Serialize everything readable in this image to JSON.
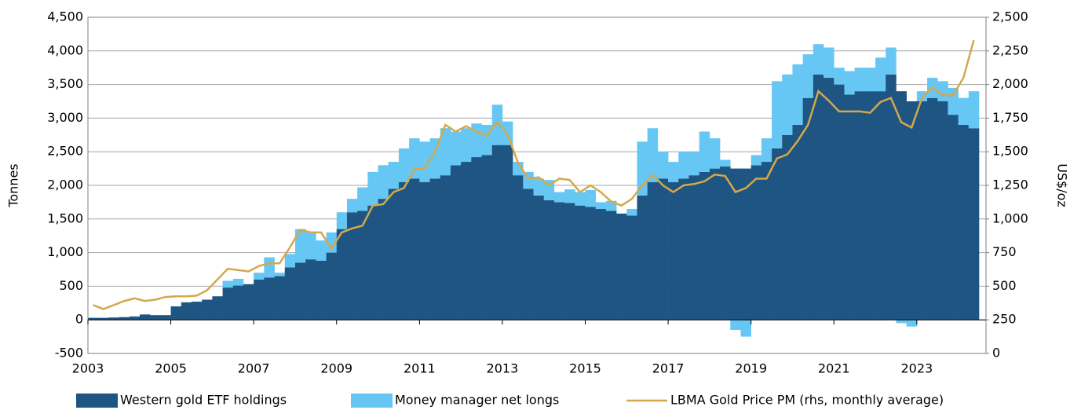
{
  "chart_data": {
    "type": "bar-line",
    "ylabel": "Tonnes",
    "y2label": "US$/oz",
    "x": [
      2003,
      2003.25,
      2003.5,
      2003.75,
      2004,
      2004.25,
      2004.5,
      2004.75,
      2005,
      2005.25,
      2005.5,
      2005.75,
      2006,
      2006.25,
      2006.5,
      2006.75,
      2007,
      2007.25,
      2007.5,
      2007.75,
      2008,
      2008.25,
      2008.5,
      2008.75,
      2009,
      2009.25,
      2009.5,
      2009.75,
      2010,
      2010.25,
      2010.5,
      2010.75,
      2011,
      2011.25,
      2011.5,
      2011.75,
      2012,
      2012.25,
      2012.5,
      2012.75,
      2013,
      2013.25,
      2013.5,
      2013.75,
      2014,
      2014.25,
      2014.5,
      2014.75,
      2015,
      2015.25,
      2015.5,
      2015.75,
      2016,
      2016.25,
      2016.5,
      2016.75,
      2017,
      2017.25,
      2017.5,
      2017.75,
      2018,
      2018.25,
      2018.5,
      2018.75,
      2019,
      2019.25,
      2019.5,
      2019.75,
      2020,
      2020.25,
      2020.5,
      2020.75,
      2021,
      2021.25,
      2021.5,
      2021.75,
      2022,
      2022.25,
      2022.5,
      2022.75,
      2023,
      2023.25,
      2023.5,
      2023.75,
      2024,
      2024.25
    ],
    "series": [
      {
        "name": "Western gold ETF holdings",
        "color": "#1f5582",
        "kind": "bar",
        "values": [
          30,
          30,
          35,
          40,
          50,
          80,
          70,
          70,
          200,
          260,
          270,
          300,
          350,
          480,
          510,
          530,
          600,
          630,
          650,
          780,
          850,
          900,
          880,
          1000,
          1350,
          1600,
          1620,
          1700,
          1800,
          1950,
          2050,
          2100,
          2050,
          2100,
          2150,
          2300,
          2350,
          2420,
          2450,
          2600,
          2600,
          2150,
          1950,
          1850,
          1780,
          1750,
          1740,
          1700,
          1680,
          1650,
          1620,
          1580,
          1550,
          1850,
          2050,
          2100,
          2050,
          2100,
          2150,
          2200,
          2250,
          2280,
          2250,
          2250,
          2300,
          2350,
          2550,
          2750,
          2900,
          3300,
          3650,
          3600,
          3500,
          3350,
          3400,
          3400,
          3400,
          3650,
          3400,
          3250,
          3250,
          3300,
          3250,
          3050,
          2900,
          2850
        ]
      },
      {
        "name": "Money manager net longs",
        "color": "#66c7f5",
        "kind": "bar",
        "values": [
          0,
          0,
          0,
          0,
          0,
          0,
          0,
          0,
          0,
          0,
          0,
          0,
          0,
          100,
          100,
          0,
          100,
          300,
          50,
          200,
          500,
          400,
          300,
          300,
          250,
          200,
          350,
          500,
          500,
          400,
          500,
          600,
          600,
          600,
          700,
          500,
          500,
          500,
          450,
          600,
          350,
          200,
          250,
          250,
          300,
          150,
          200,
          200,
          250,
          100,
          150,
          0,
          100,
          800,
          800,
          400,
          300,
          400,
          350,
          600,
          450,
          100,
          -150,
          -250,
          150,
          350,
          1000,
          900,
          900,
          650,
          450,
          450,
          250,
          350,
          350,
          350,
          500,
          400,
          -50,
          -100,
          150,
          300,
          300,
          400,
          400,
          550
        ]
      },
      {
        "name": "LBMA Gold Price PM (rhs, monthly average)",
        "color": "#d4a84a",
        "kind": "line",
        "axis": "y2",
        "values": [
          360,
          330,
          360,
          390,
          410,
          390,
          400,
          420,
          425,
          425,
          430,
          470,
          550,
          630,
          620,
          610,
          650,
          670,
          670,
          790,
          920,
          900,
          900,
          780,
          900,
          930,
          950,
          1100,
          1110,
          1200,
          1230,
          1370,
          1380,
          1500,
          1700,
          1650,
          1690,
          1650,
          1620,
          1720,
          1630,
          1420,
          1300,
          1310,
          1250,
          1300,
          1290,
          1200,
          1250,
          1200,
          1130,
          1100,
          1150,
          1250,
          1330,
          1250,
          1200,
          1250,
          1260,
          1280,
          1330,
          1320,
          1200,
          1230,
          1300,
          1300,
          1450,
          1480,
          1580,
          1700,
          1950,
          1880,
          1800,
          1800,
          1800,
          1790,
          1870,
          1900,
          1720,
          1680,
          1900,
          1980,
          1920,
          1920,
          2050,
          2330
        ]
      }
    ],
    "xlim": [
      2003,
      2024.67
    ],
    "xticks": [
      2003,
      2005,
      2007,
      2009,
      2011,
      2013,
      2015,
      2017,
      2019,
      2021,
      2023
    ],
    "ylim": [
      -500,
      4500
    ],
    "yticks": [
      -500,
      0,
      500,
      {
        "value": 1000,
        "label": "1,000"
      },
      {
        "value": 1500,
        "label": "1,500"
      },
      {
        "value": 2000,
        "label": "2,000"
      },
      {
        "value": 2500,
        "label": "2,500"
      },
      {
        "value": 3000,
        "label": "3,000"
      },
      {
        "value": 3500,
        "label": "3,500"
      },
      {
        "value": 4000,
        "label": "4,000"
      },
      {
        "value": 4500,
        "label": "4,500"
      }
    ],
    "y2lim": [
      0,
      2500
    ],
    "y2ticks": [
      0,
      250,
      500,
      750,
      {
        "value": 1000,
        "label": "1,000"
      },
      {
        "value": 1250,
        "label": "1,250"
      },
      {
        "value": 1500,
        "label": "1,500"
      },
      {
        "value": 1750,
        "label": "1,750"
      },
      {
        "value": 2000,
        "label": "2,000"
      },
      {
        "value": 2250,
        "label": "2,250"
      },
      {
        "value": 2500,
        "label": "2,500"
      }
    ],
    "grid": true,
    "legend": "bottom"
  }
}
